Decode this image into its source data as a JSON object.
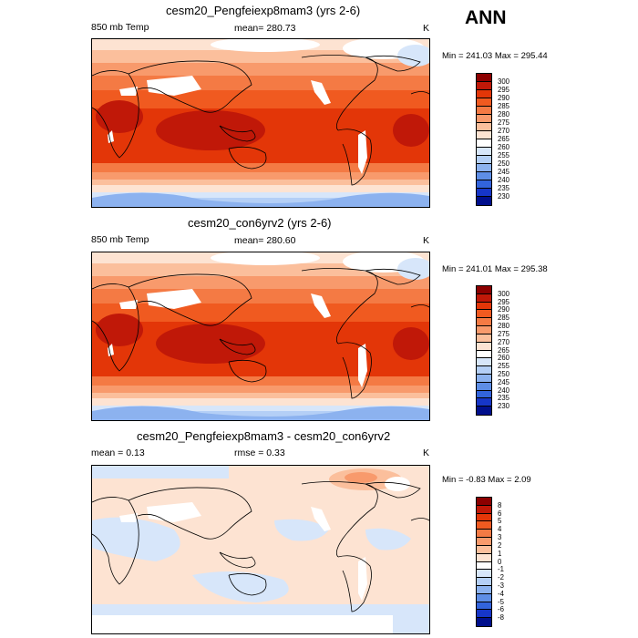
{
  "season_label": "ANN",
  "panels": [
    {
      "title": "cesm20_Pengfeiexp8mam3 (yrs 2-6)",
      "left_label": "850 mb Temp",
      "center_label": "mean= 280.73",
      "units": "K",
      "minmax": "Min = 241.03 Max = 295.44",
      "colorbar": {
        "ticks": [
          "300",
          "295",
          "290",
          "285",
          "280",
          "275",
          "270",
          "265",
          "260",
          "255",
          "250",
          "245",
          "240",
          "235",
          "230"
        ],
        "colors": [
          "#8c0000",
          "#c01808",
          "#e33608",
          "#f05a20",
          "#f47a44",
          "#f89a6c",
          "#fbbf9c",
          "#fde3d2",
          "#ffffff",
          "#d7e6fa",
          "#b4cff6",
          "#8cb2ef",
          "#5e8ee6",
          "#3264dc",
          "#1636c8",
          "#000f8c"
        ]
      }
    },
    {
      "title": "cesm20_con6yrv2 (yrs 2-6)",
      "left_label": "850 mb Temp",
      "center_label": "mean= 280.60",
      "units": "K",
      "minmax": "Min = 241.01 Max = 295.38",
      "colorbar": {
        "ticks": [
          "300",
          "295",
          "290",
          "285",
          "280",
          "275",
          "270",
          "265",
          "260",
          "255",
          "250",
          "245",
          "240",
          "235",
          "230"
        ],
        "colors": [
          "#8c0000",
          "#c01808",
          "#e33608",
          "#f05a20",
          "#f47a44",
          "#f89a6c",
          "#fbbf9c",
          "#fde3d2",
          "#ffffff",
          "#d7e6fa",
          "#b4cff6",
          "#8cb2ef",
          "#5e8ee6",
          "#3264dc",
          "#1636c8",
          "#000f8c"
        ]
      }
    },
    {
      "title": "cesm20_Pengfeiexp8mam3 - cesm20_con6yrv2",
      "left_label": "mean =   0.13",
      "center_label": "rmse =    0.33",
      "units": "K",
      "minmax": "Min =  -0.83 Max =   2.09",
      "colorbar": {
        "ticks": [
          "8",
          "6",
          "5",
          "4",
          "3",
          "2",
          "1",
          "0",
          "-1",
          "-2",
          "-3",
          "-4",
          "-5",
          "-6",
          "-8"
        ],
        "colors": [
          "#8c0000",
          "#c01808",
          "#e33608",
          "#f05a20",
          "#f47a44",
          "#f89a6c",
          "#fbbf9c",
          "#fde3d2",
          "#ffffff",
          "#d7e6fa",
          "#b4cff6",
          "#8cb2ef",
          "#5e8ee6",
          "#3264dc",
          "#1636c8",
          "#000f8c"
        ]
      }
    }
  ]
}
